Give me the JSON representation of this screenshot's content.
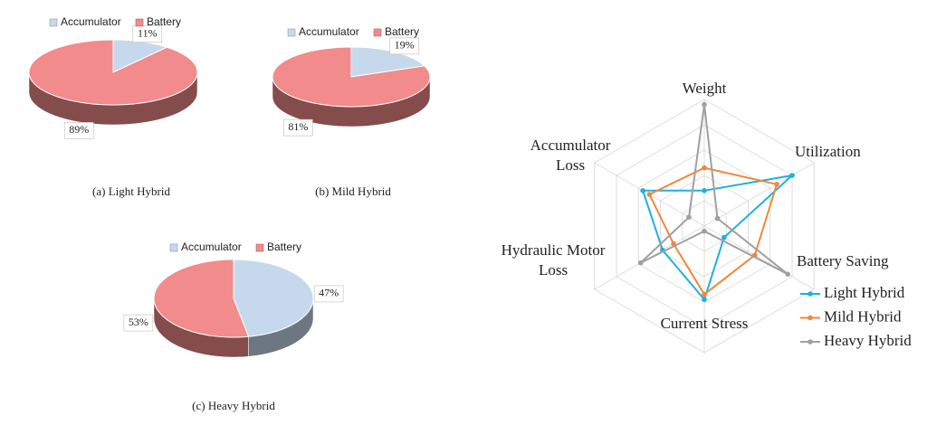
{
  "chart_data": [
    {
      "type": "pie",
      "caption": "(a) Light Hybrid",
      "categories": [
        "Accumulator",
        "Battery"
      ],
      "values": [
        11,
        89
      ],
      "value_labels": [
        "11%",
        "89%"
      ],
      "colors": [
        "#c6d9ec",
        "#f28b8b"
      ]
    },
    {
      "type": "pie",
      "caption": "(b) Mild Hybrid",
      "categories": [
        "Accumulator",
        "Battery"
      ],
      "values": [
        19,
        81
      ],
      "value_labels": [
        "19%",
        "81%"
      ],
      "colors": [
        "#c6d9ec",
        "#f28b8b"
      ]
    },
    {
      "type": "pie",
      "caption": "(c) Heavy Hybrid",
      "categories": [
        "Accumulator",
        "Battery"
      ],
      "values": [
        47,
        53
      ],
      "value_labels": [
        "47%",
        "53%"
      ],
      "colors": [
        "#c6d9ec",
        "#f28b8b"
      ]
    },
    {
      "type": "radar",
      "axes": [
        "Weight",
        "Utilization",
        "Battery Saving",
        "Current Stress",
        "Hydraulic Motor Loss",
        "Accumulator Loss"
      ],
      "rlim": [
        0,
        5
      ],
      "grid_rings": 5,
      "series": [
        {
          "name": "Light Hybrid",
          "color": "#1fb0e0",
          "values": [
            1.4,
            4.0,
            0.9,
            2.9,
            1.9,
            2.8
          ]
        },
        {
          "name": "Mild Hybrid",
          "color": "#f0883a",
          "values": [
            2.3,
            3.3,
            2.3,
            2.7,
            1.4,
            2.5
          ]
        },
        {
          "name": "Heavy Hybrid",
          "color": "#a0a0a0",
          "values": [
            4.8,
            0.6,
            3.8,
            0.2,
            2.9,
            0.7
          ]
        }
      ]
    }
  ]
}
